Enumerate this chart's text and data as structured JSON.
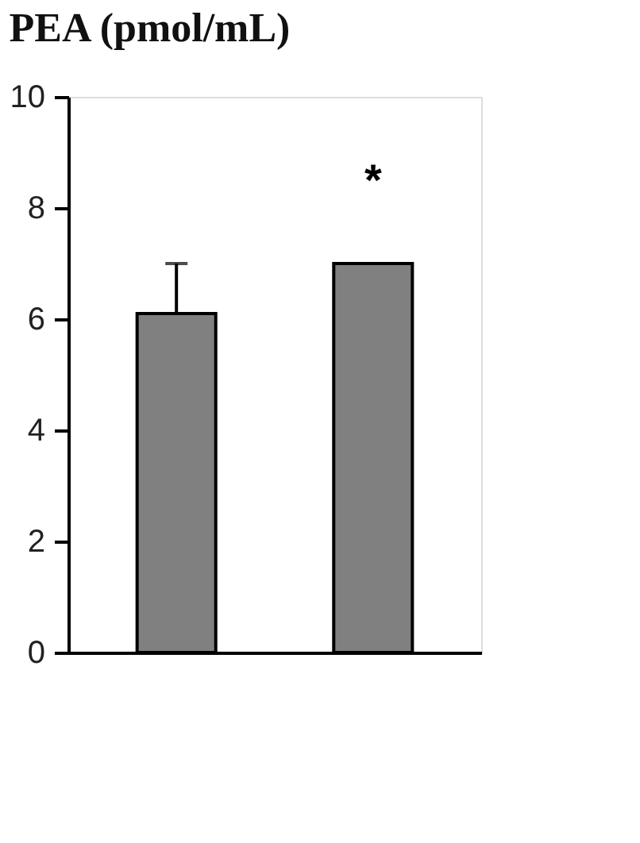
{
  "chart_data": {
    "type": "bar",
    "title": "PEA (pmol/mL)",
    "categories": [
      null,
      null
    ],
    "values": [
      6.1,
      7.0
    ],
    "errors": [
      0.9,
      null
    ],
    "color": "#808080",
    "ylim": [
      0,
      10
    ],
    "yticks": [
      0,
      2,
      4,
      6,
      8,
      10
    ],
    "tick_labels": "y",
    "grid": false,
    "annotations": [
      "*"
    ]
  }
}
